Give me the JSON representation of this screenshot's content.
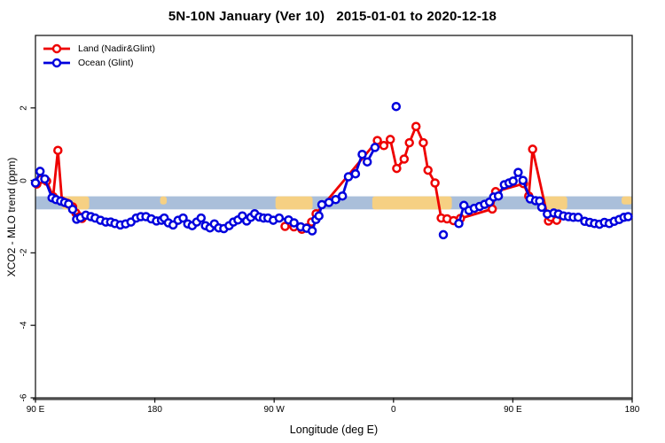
{
  "chart_data": {
    "type": "line",
    "title": "5N-10N January (Ver 10)   2015-01-01 to 2020-12-18",
    "xlabel": "Longitude (deg E)",
    "ylabel": "XCO2 - MLO trend (ppm)",
    "xlim": [
      90,
      540
    ],
    "ylim": [
      -6,
      4
    ],
    "grid": false,
    "legend_position": "top-left-inside",
    "x_ticks": [
      {
        "lon": 90,
        "label": "90 E"
      },
      {
        "lon": 180,
        "label": "180"
      },
      {
        "lon": 270,
        "label": "90 W"
      },
      {
        "lon": 360,
        "label": "0"
      },
      {
        "lon": 450,
        "label": "90 E"
      },
      {
        "lon": 540,
        "label": "180"
      }
    ],
    "y_ticks": [
      {
        "value": 2,
        "label": "2"
      },
      {
        "value": 0,
        "label": "0"
      },
      {
        "value": -2,
        "label": "-2"
      },
      {
        "value": -4,
        "label": "-4"
      },
      {
        "value": -6,
        "label": "-6"
      }
    ],
    "surface_band": {
      "description": "land/ocean strip along latitude band",
      "value_top": -0.44,
      "value_bottom": -0.8,
      "ocean_color": "#aabfda",
      "land_color": "#f6d083",
      "land_segments": [
        {
          "from": 104,
          "to": 108,
          "partial": true
        },
        {
          "from": 110,
          "to": 130.5,
          "partial": false
        },
        {
          "from": 184,
          "to": 189,
          "partial": true
        },
        {
          "from": 271,
          "to": 299,
          "partial": false
        },
        {
          "from": 344,
          "to": 404,
          "partial": false
        },
        {
          "from": 465,
          "to": 469,
          "partial": true
        },
        {
          "from": 471,
          "to": 491,
          "partial": false
        },
        {
          "from": 532,
          "to": 540,
          "partial": true
        }
      ]
    },
    "series": [
      {
        "name": "Land (Nadir&Glint)",
        "color": "#ee0000",
        "marker": "open-circle",
        "segments": [
          [
            [
              91,
              -0.1
            ],
            [
              94,
              0.03
            ],
            [
              98.4,
              -0.02
            ],
            [
              103.3,
              -0.45
            ],
            [
              106.9,
              0.83
            ],
            [
              110,
              -0.57
            ],
            [
              114,
              -0.63
            ],
            [
              118,
              -0.73
            ],
            [
              120.5,
              -0.9
            ],
            [
              123,
              -1.0
            ],
            [
              125.1,
              -1.05
            ]
          ],
          [
            [
              278.2,
              -1.27
            ],
            [
              284.9,
              -1.28
            ],
            [
              290.9,
              -1.35
            ],
            [
              294.7,
              -1.31
            ],
            [
              298.2,
              -1.15
            ],
            [
              301.6,
              -0.92
            ],
            [
              347.8,
              1.1
            ],
            [
              352.7,
              0.96
            ],
            [
              357.6,
              1.13
            ],
            [
              362.4,
              0.33
            ],
            [
              368,
              0.59
            ],
            [
              372,
              1.04
            ],
            [
              377,
              1.49
            ],
            [
              382.5,
              1.04
            ],
            [
              386,
              0.28
            ],
            [
              391.3,
              -0.07
            ],
            [
              396,
              -1.04
            ],
            [
              400.4,
              -1.06
            ],
            [
              405.3,
              -1.11
            ],
            [
              410.5,
              -1.05
            ],
            [
              434.5,
              -0.79
            ],
            [
              437,
              -0.31
            ],
            [
              458,
              -0.09
            ],
            [
              462,
              -0.43
            ],
            [
              464.9,
              0.86
            ],
            [
              476.9,
              -1.12
            ],
            [
              478.7,
              -1.02
            ],
            [
              483.1,
              -1.1
            ]
          ]
        ]
      },
      {
        "name": "Ocean (Glint)",
        "color": "#0000dd",
        "marker": "open-circle",
        "segments": [
          [
            [
              90,
              -0.07
            ],
            [
              93.5,
              0.25
            ],
            [
              97,
              0.04
            ],
            [
              102.5,
              -0.48
            ],
            [
              105.5,
              -0.53
            ],
            [
              109,
              -0.57
            ],
            [
              112,
              -0.61
            ],
            [
              115,
              -0.65
            ],
            [
              118,
              -0.8
            ],
            [
              121,
              -1.07
            ],
            [
              124,
              -1.03
            ],
            [
              128,
              -0.96
            ],
            [
              131.8,
              -1.0
            ],
            [
              135,
              -1.04
            ],
            [
              139,
              -1.1
            ],
            [
              143,
              -1.15
            ],
            [
              146.7,
              -1.15
            ],
            [
              150,
              -1.19
            ],
            [
              154,
              -1.23
            ],
            [
              158,
              -1.2
            ],
            [
              162,
              -1.15
            ],
            [
              166,
              -1.04
            ],
            [
              169.5,
              -1.0
            ],
            [
              173.3,
              -1.0
            ],
            [
              177.3,
              -1.06
            ],
            [
              181.3,
              -1.12
            ],
            [
              185,
              -1.1
            ],
            [
              187.1,
              -1.04
            ],
            [
              190.2,
              -1.17
            ],
            [
              193.8,
              -1.23
            ],
            [
              197.6,
              -1.1
            ],
            [
              201.3,
              -1.04
            ],
            [
              204.9,
              -1.2
            ],
            [
              208.2,
              -1.25
            ],
            [
              211.6,
              -1.15
            ],
            [
              214.9,
              -1.04
            ],
            [
              218.2,
              -1.25
            ],
            [
              221.6,
              -1.31
            ],
            [
              224.9,
              -1.2
            ],
            [
              228.2,
              -1.31
            ],
            [
              232,
              -1.33
            ],
            [
              236,
              -1.25
            ],
            [
              239.3,
              -1.15
            ],
            [
              242.7,
              -1.09
            ],
            [
              246,
              -0.98
            ],
            [
              249.3,
              -1.12
            ],
            [
              252.4,
              -1.02
            ],
            [
              255.3,
              -0.92
            ],
            [
              258.7,
              -1.01
            ],
            [
              262,
              -1.04
            ],
            [
              265.3,
              -1.04
            ],
            [
              269.3,
              -1.1
            ],
            [
              273.8,
              -1.04
            ],
            [
              280.9,
              -1.09
            ],
            [
              285,
              -1.17
            ],
            [
              290,
              -1.28
            ],
            [
              294.5,
              -1.32
            ],
            [
              298.7,
              -1.39
            ],
            [
              301.5,
              -1.08
            ],
            [
              303.8,
              -0.98
            ],
            [
              306,
              -0.67
            ],
            [
              311.3,
              -0.61
            ],
            [
              316.4,
              -0.53
            ],
            [
              321.5,
              -0.43
            ],
            [
              326,
              0.1
            ],
            [
              331.3,
              0.18
            ],
            [
              336.4,
              0.72
            ],
            [
              340.2,
              0.51
            ],
            [
              346,
              0.91
            ]
          ],
          [
            [
              362,
              2.04
            ]
          ],
          [
            [
              397.6,
              -1.5
            ]
          ],
          [
            [
              409.3,
              -1.19
            ],
            [
              413.1,
              -0.69
            ],
            [
              416.9,
              -0.83
            ],
            [
              420.9,
              -0.77
            ],
            [
              424.9,
              -0.72
            ],
            [
              428.7,
              -0.66
            ],
            [
              432.4,
              -0.6
            ],
            [
              435.5,
              -0.46
            ],
            [
              439.1,
              -0.43
            ],
            [
              443.6,
              -0.12
            ],
            [
              447.1,
              -0.07
            ],
            [
              450.2,
              -0.02
            ],
            [
              454,
              0.22
            ],
            [
              457.6,
              0.0
            ],
            [
              463.1,
              -0.51
            ],
            [
              467.1,
              -0.56
            ],
            [
              470.2,
              -0.57
            ],
            [
              471.8,
              -0.74
            ],
            [
              476,
              -0.93
            ],
            [
              480.9,
              -0.9
            ],
            [
              484.4,
              -0.93
            ],
            [
              488.2,
              -0.98
            ],
            [
              492,
              -1.0
            ],
            [
              495.6,
              -1.02
            ],
            [
              499.3,
              -1.02
            ],
            [
              504.2,
              -1.13
            ],
            [
              508,
              -1.16
            ],
            [
              511.6,
              -1.19
            ],
            [
              515.3,
              -1.21
            ],
            [
              519.1,
              -1.16
            ],
            [
              522.7,
              -1.19
            ],
            [
              526.4,
              -1.13
            ],
            [
              530.2,
              -1.08
            ],
            [
              533.8,
              -1.02
            ],
            [
              536.9,
              -1.0
            ]
          ]
        ]
      }
    ]
  }
}
